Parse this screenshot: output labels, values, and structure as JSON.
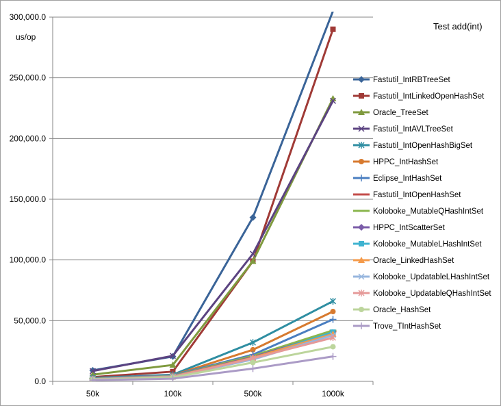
{
  "chart_data": {
    "type": "line",
    "title": "Test add(int)",
    "ylabel": "us/op",
    "xlabel": "",
    "categories": [
      "50k",
      "100k",
      "500k",
      "1000k"
    ],
    "ylim": [
      0,
      300000
    ],
    "yticks": [
      0,
      50000,
      100000,
      150000,
      200000,
      250000,
      300000
    ],
    "ytick_labels": [
      "0.0",
      "50,000.0",
      "100,000.0",
      "150,000.0",
      "200,000.0",
      "250,000.0",
      "300,000.0"
    ],
    "grid": "horizontal",
    "legend_position": "right",
    "series": [
      {
        "name": "Fastutil_IntRBTreeSet",
        "color": "#3a6498",
        "marker": "diamond",
        "values": [
          9000,
          20500,
          135000,
          305000
        ]
      },
      {
        "name": "Fastutil_IntLinkedOpenHashSet",
        "color": "#a03a36",
        "marker": "square",
        "values": [
          3500,
          8000,
          99000,
          290000
        ]
      },
      {
        "name": "Oracle_TreeSet",
        "color": "#7f9a3e",
        "marker": "triangle",
        "values": [
          5500,
          13500,
          99000,
          233000
        ]
      },
      {
        "name": "Fastutil_IntAVLTreeSet",
        "color": "#5b4381",
        "marker": "x",
        "values": [
          8500,
          21000,
          105000,
          231000
        ]
      },
      {
        "name": "Fastutil_IntOpenHashBigSet",
        "color": "#2f8ea2",
        "marker": "star",
        "values": [
          2800,
          5500,
          32000,
          66000
        ]
      },
      {
        "name": "HPPC_IntHashSet",
        "color": "#d77a2f",
        "marker": "circle",
        "values": [
          2500,
          5000,
          26000,
          57500
        ]
      },
      {
        "name": "Eclipse_IntHashSet",
        "color": "#4a7ec0",
        "marker": "plus",
        "values": [
          2500,
          5000,
          22000,
          51000
        ]
      },
      {
        "name": "Fastutil_IntOpenHashSet",
        "color": "#c44e4b",
        "marker": "dash",
        "values": [
          2200,
          4500,
          20000,
          41000
        ]
      },
      {
        "name": "Koloboke_MutableQHashIntSet",
        "color": "#8ab64d",
        "marker": "dash",
        "values": [
          2200,
          4500,
          21000,
          42000
        ]
      },
      {
        "name": "HPPC_IntScatterSet",
        "color": "#7b5ca8",
        "marker": "diamond",
        "values": [
          2000,
          4300,
          20000,
          40000
        ]
      },
      {
        "name": "Koloboke_MutableLHashIntSet",
        "color": "#3fb3d0",
        "marker": "square",
        "values": [
          2000,
          4200,
          19000,
          40500
        ]
      },
      {
        "name": "Oracle_LinkedHashSet",
        "color": "#f49a4a",
        "marker": "triangle",
        "values": [
          1800,
          4000,
          19500,
          39000
        ]
      },
      {
        "name": "Koloboke_UpdatableLHashIntSet",
        "color": "#97b6de",
        "marker": "x",
        "values": [
          1800,
          3800,
          18000,
          38000
        ]
      },
      {
        "name": "Koloboke_UpdatableQHashIntSet",
        "color": "#e59a99",
        "marker": "star",
        "values": [
          1700,
          3700,
          19000,
          36000
        ]
      },
      {
        "name": "Oracle_HashSet",
        "color": "#bcd59c",
        "marker": "circle",
        "values": [
          1500,
          3200,
          15500,
          28500
        ]
      },
      {
        "name": "Trove_TIntHashSet",
        "color": "#ab9bc6",
        "marker": "plus",
        "values": [
          1000,
          2200,
          10500,
          20500
        ]
      }
    ]
  }
}
